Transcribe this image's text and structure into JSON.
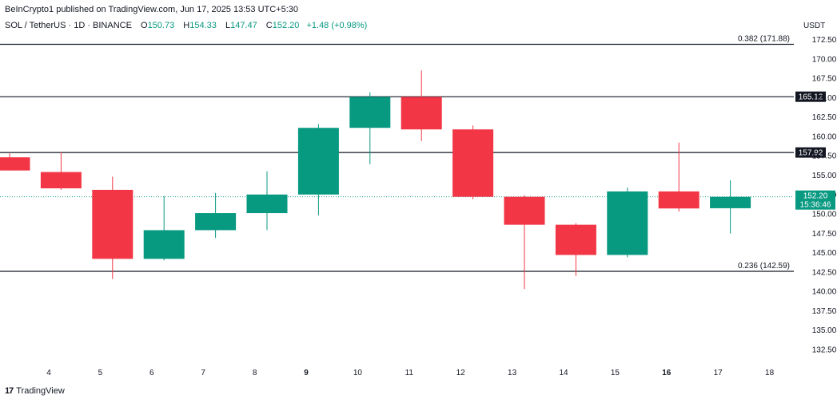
{
  "header": {
    "published": "BeInCrypto1 published on TradingView.com, Jun 17, 2025 13:53 UTC+5:30",
    "symbol": "SOL / TetherUS · 1D · BINANCE",
    "o_label": "O",
    "o_value": "150.73",
    "h_label": "H",
    "h_value": "154.33",
    "l_label": "L",
    "l_value": "147.47",
    "c_label": "C",
    "c_value": "152.20",
    "change": "+1.48 (+0.98%)"
  },
  "axis": {
    "unit": "USDT"
  },
  "footer": {
    "brand": "TradingView"
  },
  "colors": {
    "up": "#089981",
    "down": "#f23645",
    "line": "#131722",
    "grid": "#f0f3fa"
  },
  "chart_data": {
    "type": "candlestick",
    "y_range": [
      131.5,
      175.0
    ],
    "y_ticks": [
      "172.50",
      "170.00",
      "167.50",
      "165.00",
      "162.50",
      "160.00",
      "157.50",
      "155.00",
      "152.50",
      "150.00",
      "147.50",
      "145.00",
      "142.50",
      "140.00",
      "137.50",
      "135.00",
      "132.50"
    ],
    "x_ticks": [
      {
        "label": "4",
        "bold": false
      },
      {
        "label": "5",
        "bold": false
      },
      {
        "label": "6",
        "bold": false
      },
      {
        "label": "7",
        "bold": false
      },
      {
        "label": "8",
        "bold": false
      },
      {
        "label": "9",
        "bold": true
      },
      {
        "label": "10",
        "bold": false
      },
      {
        "label": "11",
        "bold": false
      },
      {
        "label": "12",
        "bold": false
      },
      {
        "label": "13",
        "bold": false
      },
      {
        "label": "14",
        "bold": false
      },
      {
        "label": "15",
        "bold": false
      },
      {
        "label": "16",
        "bold": true
      },
      {
        "label": "17",
        "bold": false
      },
      {
        "label": "18",
        "bold": false
      }
    ],
    "candles": [
      {
        "date": "3",
        "open": 157.3,
        "high": 157.8,
        "low": 155.6,
        "close": 155.6
      },
      {
        "date": "4",
        "open": 155.4,
        "high": 158.0,
        "low": 153.1,
        "close": 153.3
      },
      {
        "date": "5",
        "open": 153.1,
        "high": 154.8,
        "low": 141.6,
        "close": 144.2
      },
      {
        "date": "6",
        "open": 144.2,
        "high": 152.3,
        "low": 144.0,
        "close": 147.9
      },
      {
        "date": "7",
        "open": 147.9,
        "high": 152.7,
        "low": 146.9,
        "close": 150.1
      },
      {
        "date": "8",
        "open": 150.1,
        "high": 155.5,
        "low": 147.9,
        "close": 152.5
      },
      {
        "date": "9",
        "open": 152.5,
        "high": 161.6,
        "low": 149.8,
        "close": 161.1
      },
      {
        "date": "10",
        "open": 161.1,
        "high": 165.7,
        "low": 156.4,
        "close": 165.1
      },
      {
        "date": "11",
        "open": 165.1,
        "high": 168.5,
        "low": 159.4,
        "close": 160.9
      },
      {
        "date": "12",
        "open": 160.9,
        "high": 161.4,
        "low": 151.9,
        "close": 152.2
      },
      {
        "date": "13",
        "open": 152.2,
        "high": 152.4,
        "low": 140.3,
        "close": 148.6
      },
      {
        "date": "14",
        "open": 148.6,
        "high": 148.8,
        "low": 142.0,
        "close": 144.7
      },
      {
        "date": "15",
        "open": 144.7,
        "high": 153.4,
        "low": 144.4,
        "close": 152.9
      },
      {
        "date": "16",
        "open": 152.9,
        "high": 159.2,
        "low": 150.3,
        "close": 150.7
      },
      {
        "date": "17",
        "open": 150.73,
        "high": 154.33,
        "low": 147.47,
        "close": 152.2
      }
    ],
    "levels": [
      {
        "value": 171.88,
        "label": "0.382 (171.88)",
        "badge": false
      },
      {
        "value": 165.12,
        "label": "165.12",
        "badge": true
      },
      {
        "value": 157.92,
        "label": "157.92",
        "badge": true
      },
      {
        "value": 142.59,
        "label": "0.236 (142.59)",
        "badge": false
      }
    ],
    "last_price": {
      "value": 152.2,
      "label": "152.20",
      "timer": "15:36:46"
    }
  }
}
